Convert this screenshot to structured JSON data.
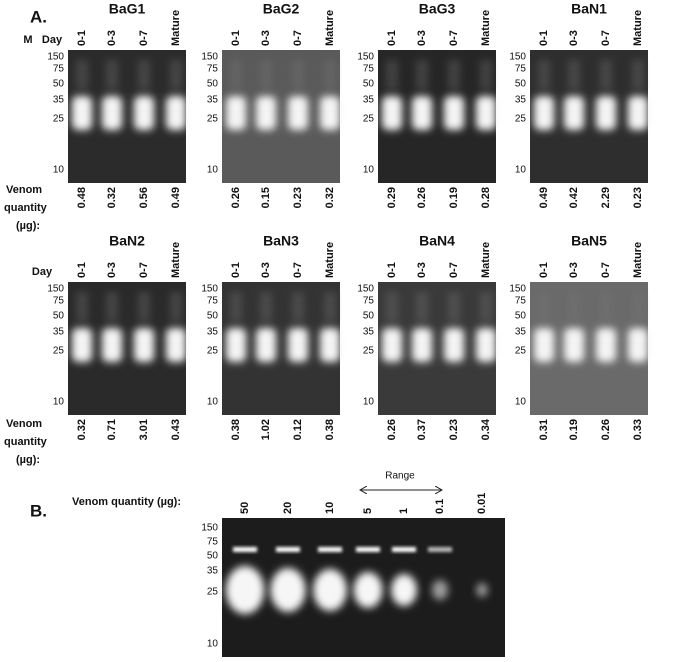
{
  "panel_a": {
    "label": "A.",
    "markers": [
      "150",
      "75",
      "50",
      "35",
      "25",
      "10"
    ],
    "quantity_label": [
      "Venom",
      "quantity",
      "(µg):"
    ],
    "rows": [
      {
        "headers": [
          "M",
          "Day"
        ],
        "gels": [
          {
            "title": "BaG1",
            "lanes": [
              "0-1",
              "0-3",
              "0-7",
              "Mature"
            ],
            "quantities": [
              "0.48",
              "0.32",
              "0.56",
              "0.49"
            ]
          },
          {
            "title": "BaG2",
            "lanes": [
              "0-1",
              "0-3",
              "0-7",
              "Mature"
            ],
            "quantities": [
              "0.26",
              "0.15",
              "0.23",
              "0.32"
            ]
          },
          {
            "title": "BaG3",
            "lanes": [
              "0-1",
              "0-3",
              "0-7",
              "Mature"
            ],
            "quantities": [
              "0.29",
              "0.26",
              "0.19",
              "0.28"
            ]
          },
          {
            "title": "BaN1",
            "lanes": [
              "0-1",
              "0-3",
              "0-7",
              "Mature"
            ],
            "quantities": [
              "0.49",
              "0.42",
              "2.29",
              "0.23"
            ]
          }
        ]
      },
      {
        "headers": [
          "Day"
        ],
        "gels": [
          {
            "title": "BaN2",
            "lanes": [
              "0-1",
              "0-3",
              "0-7",
              "Mature"
            ],
            "quantities": [
              "0.32",
              "0.71",
              "3.01",
              "0.43"
            ]
          },
          {
            "title": "BaN3",
            "lanes": [
              "0-1",
              "0-3",
              "0-7",
              "Mature"
            ],
            "quantities": [
              "0.38",
              "1.02",
              "0.12",
              "0.38"
            ]
          },
          {
            "title": "BaN4",
            "lanes": [
              "0-1",
              "0-3",
              "0-7",
              "Mature"
            ],
            "quantities": [
              "0.26",
              "0.37",
              "0.23",
              "0.34"
            ]
          },
          {
            "title": "BaN5",
            "lanes": [
              "0-1",
              "0-3",
              "0-7",
              "Mature"
            ],
            "quantities": [
              "0.31",
              "0.19",
              "0.26",
              "0.33"
            ]
          }
        ]
      }
    ]
  },
  "panel_b": {
    "label": "B.",
    "quantity_label": "Venom quantity (µg):",
    "quantities": [
      "50",
      "20",
      "10",
      "5",
      "1",
      "0.1",
      "0.01"
    ],
    "range_label": "Range",
    "markers": [
      "150",
      "75",
      "50",
      "35",
      "25",
      "10"
    ]
  }
}
